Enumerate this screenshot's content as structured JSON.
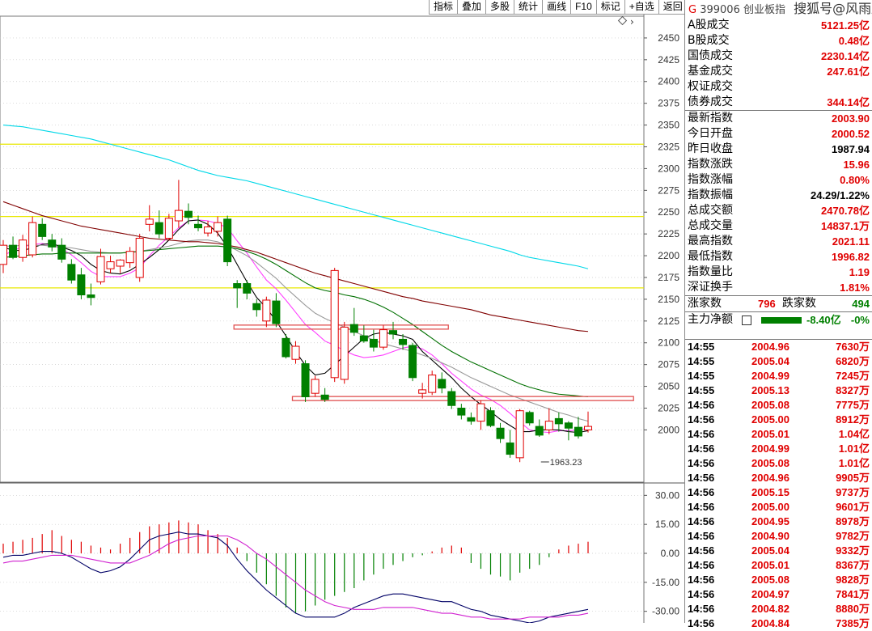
{
  "toolbar": [
    "指标",
    "叠加",
    "多股",
    "统计",
    "画线",
    "F10",
    "标记",
    "+自选",
    "返回"
  ],
  "header": {
    "marker": "G",
    "code": "399006",
    "name": "创业板指",
    "watermark": "搜狐号@风雨顺德人"
  },
  "market": [
    {
      "label": "A股成交",
      "value": "5121.25亿",
      "color": "red"
    },
    {
      "label": "B股成交",
      "value": "0.48亿",
      "color": "red"
    },
    {
      "label": "国债成交",
      "value": "2230.14亿",
      "color": "red"
    },
    {
      "label": "基金成交",
      "value": "247.61亿",
      "color": "red"
    },
    {
      "label": "权证成交",
      "value": "",
      "color": "red"
    },
    {
      "label": "债券成交",
      "value": "344.14亿",
      "color": "red"
    }
  ],
  "quote": [
    {
      "label": "最新指数",
      "value": "2003.90",
      "color": "red"
    },
    {
      "label": "今日开盘",
      "value": "2000.52",
      "color": "red"
    },
    {
      "label": "昨日收盘",
      "value": "1987.94",
      "color": "blk"
    },
    {
      "label": "指数涨跌",
      "value": "15.96",
      "color": "red"
    },
    {
      "label": "指数涨幅",
      "value": "0.80%",
      "color": "red"
    },
    {
      "label": "指数振幅",
      "value": "24.29/1.22%",
      "color": "blk"
    },
    {
      "label": "总成交额",
      "value": "2470.78亿",
      "color": "red"
    },
    {
      "label": "总成交量",
      "value": "14837.1万",
      "color": "red"
    },
    {
      "label": "最高指数",
      "value": "2021.11",
      "color": "red"
    },
    {
      "label": "最低指数",
      "value": "1996.82",
      "color": "red"
    },
    {
      "label": "指数量比",
      "value": "1.19",
      "color": "red"
    },
    {
      "label": "深证换手",
      "value": "1.81%",
      "color": "red"
    }
  ],
  "breadth": {
    "up_label": "涨家数",
    "up": "796",
    "down_label": "跌家数",
    "down": "494"
  },
  "mainflow": {
    "label": "主力净额",
    "value": "-8.40亿",
    "pct": "-0%"
  },
  "ticks": [
    {
      "t": "14:55",
      "p": "2004.96",
      "v": "7630万"
    },
    {
      "t": "14:55",
      "p": "2005.04",
      "v": "6820万"
    },
    {
      "t": "14:55",
      "p": "2004.99",
      "v": "7245万"
    },
    {
      "t": "14:55",
      "p": "2005.13",
      "v": "8327万"
    },
    {
      "t": "14:56",
      "p": "2005.08",
      "v": "7775万"
    },
    {
      "t": "14:56",
      "p": "2005.00",
      "v": "8912万"
    },
    {
      "t": "14:56",
      "p": "2005.01",
      "v": "1.04亿"
    },
    {
      "t": "14:56",
      "p": "2004.99",
      "v": "1.01亿"
    },
    {
      "t": "14:56",
      "p": "2005.08",
      "v": "1.01亿"
    },
    {
      "t": "14:56",
      "p": "2004.96",
      "v": "9905万"
    },
    {
      "t": "14:56",
      "p": "2005.15",
      "v": "9737万"
    },
    {
      "t": "14:56",
      "p": "2005.00",
      "v": "9601万"
    },
    {
      "t": "14:56",
      "p": "2004.95",
      "v": "8978万"
    },
    {
      "t": "14:56",
      "p": "2004.90",
      "v": "9782万"
    },
    {
      "t": "14:56",
      "p": "2005.04",
      "v": "9332万"
    },
    {
      "t": "14:56",
      "p": "2005.01",
      "v": "8367万"
    },
    {
      "t": "14:56",
      "p": "2005.08",
      "v": "9828万"
    },
    {
      "t": "14:56",
      "p": "2004.97",
      "v": "7841万"
    },
    {
      "t": "14:56",
      "p": "2004.82",
      "v": "8880万"
    },
    {
      "t": "14:56",
      "p": "2004.84",
      "v": "7385万"
    }
  ],
  "chart_data": {
    "type": "candlestick",
    "price_axis": {
      "ylim": [
        1940,
        2475
      ],
      "ticks": [
        2450,
        2425,
        2400,
        2375,
        2350,
        2325,
        2300,
        2275,
        2250,
        2225,
        2200,
        2175,
        2150,
        2125,
        2100,
        2075,
        2050,
        2025,
        2000
      ]
    },
    "macd_axis": {
      "ylim": [
        -36,
        36
      ],
      "ticks": [
        30.0,
        15.0,
        0.0,
        -15.0,
        -30.0
      ],
      "tick_labels": [
        "30.00",
        "15.00",
        "0.00",
        "-15.00",
        "-30.00"
      ]
    },
    "annotation": {
      "label": "1963.23",
      "value": 1963.23,
      "index": 55
    },
    "horizontal_lines": [
      {
        "value": 2328,
        "color": "#e8e800"
      },
      {
        "value": 2245,
        "color": "#e8e800"
      },
      {
        "value": 2163,
        "color": "#e8e800"
      }
    ],
    "zones": [
      {
        "from": 24,
        "to": 45,
        "value": 2118,
        "color": "#e05050"
      },
      {
        "from": 30,
        "to": 64,
        "value": 2036,
        "color": "#e05050"
      }
    ],
    "candles": [
      {
        "o": 2190,
        "h": 2218,
        "l": 2180,
        "c": 2212
      },
      {
        "o": 2212,
        "h": 2222,
        "l": 2196,
        "c": 2198
      },
      {
        "o": 2198,
        "h": 2224,
        "l": 2193,
        "c": 2218
      },
      {
        "o": 2201,
        "h": 2245,
        "l": 2198,
        "c": 2238
      },
      {
        "o": 2236,
        "h": 2243,
        "l": 2218,
        "c": 2222
      },
      {
        "o": 2218,
        "h": 2225,
        "l": 2205,
        "c": 2210
      },
      {
        "o": 2212,
        "h": 2220,
        "l": 2192,
        "c": 2196
      },
      {
        "o": 2190,
        "h": 2196,
        "l": 2168,
        "c": 2172
      },
      {
        "o": 2178,
        "h": 2186,
        "l": 2150,
        "c": 2155
      },
      {
        "o": 2155,
        "h": 2168,
        "l": 2143,
        "c": 2152
      },
      {
        "o": 2170,
        "h": 2208,
        "l": 2167,
        "c": 2199
      },
      {
        "o": 2185,
        "h": 2200,
        "l": 2180,
        "c": 2193
      },
      {
        "o": 2188,
        "h": 2196,
        "l": 2180,
        "c": 2195
      },
      {
        "o": 2192,
        "h": 2210,
        "l": 2186,
        "c": 2205
      },
      {
        "o": 2175,
        "h": 2225,
        "l": 2170,
        "c": 2220
      },
      {
        "o": 2236,
        "h": 2258,
        "l": 2228,
        "c": 2242
      },
      {
        "o": 2238,
        "h": 2252,
        "l": 2220,
        "c": 2225
      },
      {
        "o": 2220,
        "h": 2248,
        "l": 2218,
        "c": 2243
      },
      {
        "o": 2240,
        "h": 2287,
        "l": 2232,
        "c": 2252
      },
      {
        "o": 2251,
        "h": 2260,
        "l": 2236,
        "c": 2244
      },
      {
        "o": 2236,
        "h": 2246,
        "l": 2228,
        "c": 2232
      },
      {
        "o": 2226,
        "h": 2240,
        "l": 2222,
        "c": 2233
      },
      {
        "o": 2228,
        "h": 2245,
        "l": 2222,
        "c": 2238
      },
      {
        "o": 2242,
        "h": 2246,
        "l": 2188,
        "c": 2193
      },
      {
        "o": 2168,
        "h": 2172,
        "l": 2140,
        "c": 2163
      },
      {
        "o": 2168,
        "h": 2172,
        "l": 2150,
        "c": 2157
      },
      {
        "o": 2145,
        "h": 2150,
        "l": 2130,
        "c": 2138
      },
      {
        "o": 2125,
        "h": 2153,
        "l": 2118,
        "c": 2149
      },
      {
        "o": 2148,
        "h": 2157,
        "l": 2118,
        "c": 2122
      },
      {
        "o": 2105,
        "h": 2110,
        "l": 2082,
        "c": 2084
      },
      {
        "o": 2081,
        "h": 2102,
        "l": 2076,
        "c": 2096
      },
      {
        "o": 2076,
        "h": 2080,
        "l": 2032,
        "c": 2038
      },
      {
        "o": 2042,
        "h": 2062,
        "l": 2038,
        "c": 2058
      },
      {
        "o": 2040,
        "h": 2048,
        "l": 2032,
        "c": 2035
      },
      {
        "o": 2060,
        "h": 2186,
        "l": 2055,
        "c": 2183
      },
      {
        "o": 2058,
        "h": 2124,
        "l": 2053,
        "c": 2118
      },
      {
        "o": 2121,
        "h": 2140,
        "l": 2108,
        "c": 2112
      },
      {
        "o": 2108,
        "h": 2120,
        "l": 2100,
        "c": 2102
      },
      {
        "o": 2104,
        "h": 2115,
        "l": 2090,
        "c": 2095
      },
      {
        "o": 2095,
        "h": 2120,
        "l": 2092,
        "c": 2115
      },
      {
        "o": 2114,
        "h": 2124,
        "l": 2104,
        "c": 2110
      },
      {
        "o": 2104,
        "h": 2110,
        "l": 2092,
        "c": 2098
      },
      {
        "o": 2097,
        "h": 2100,
        "l": 2056,
        "c": 2060
      },
      {
        "o": 2042,
        "h": 2054,
        "l": 2036,
        "c": 2046
      },
      {
        "o": 2043,
        "h": 2068,
        "l": 2040,
        "c": 2063
      },
      {
        "o": 2058,
        "h": 2066,
        "l": 2042,
        "c": 2048
      },
      {
        "o": 2044,
        "h": 2048,
        "l": 2024,
        "c": 2028
      },
      {
        "o": 2025,
        "h": 2030,
        "l": 2012,
        "c": 2017
      },
      {
        "o": 2014,
        "h": 2020,
        "l": 2006,
        "c": 2010
      },
      {
        "o": 2010,
        "h": 2034,
        "l": 2000,
        "c": 2030
      },
      {
        "o": 2022,
        "h": 2026,
        "l": 2003,
        "c": 2005
      },
      {
        "o": 2002,
        "h": 2008,
        "l": 1985,
        "c": 1990
      },
      {
        "o": 1985,
        "h": 2000,
        "l": 1968,
        "c": 1972
      },
      {
        "o": 1968,
        "h": 2024,
        "l": 1963,
        "c": 2022
      },
      {
        "o": 2020,
        "h": 2022,
        "l": 2005,
        "c": 2008
      },
      {
        "o": 2004,
        "h": 2012,
        "l": 1992,
        "c": 1994
      },
      {
        "o": 2000,
        "h": 2025,
        "l": 1995,
        "c": 2010
      },
      {
        "o": 2013,
        "h": 2020,
        "l": 1998,
        "c": 2007
      },
      {
        "o": 2008,
        "h": 2010,
        "l": 1988,
        "c": 2002
      },
      {
        "o": 2003,
        "h": 2015,
        "l": 1990,
        "c": 1993
      },
      {
        "o": 2000,
        "h": 2021,
        "l": 1997,
        "c": 2004
      }
    ],
    "ma": [
      {
        "color": "#ff40ff",
        "values": [
          2200,
          2206,
          2210,
          2213,
          2214,
          2212,
          2208,
          2201,
          2192,
          2182,
          2176,
          2176,
          2176,
          2180,
          2186,
          2200,
          2212,
          2222,
          2232,
          2240,
          2241,
          2240,
          2237,
          2232,
          2217,
          2203,
          2187,
          2172,
          2162,
          2149,
          2135,
          2121,
          2112,
          2102,
          2097,
          2091,
          2086,
          2083,
          2084,
          2086,
          2090,
          2094,
          2096,
          2093,
          2086,
          2076,
          2065,
          2056,
          2047,
          2040,
          2035,
          2028,
          2019,
          2009,
          2000,
          1998,
          1997,
          1999,
          1999,
          2000,
          2002
        ]
      },
      {
        "color": "#000000",
        "values": [
          2210,
          2206,
          2206,
          2209,
          2213,
          2214,
          2210,
          2206,
          2200,
          2190,
          2183,
          2180,
          2179,
          2183,
          2190,
          2198,
          2207,
          2218,
          2230,
          2240,
          2241,
          2236,
          2226,
          2210,
          2190,
          2170,
          2152,
          2140,
          2125,
          2108,
          2090,
          2074,
          2063,
          2065,
          2075,
          2085,
          2095,
          2105,
          2110,
          2112,
          2110,
          2108,
          2104,
          2090,
          2080,
          2070,
          2060,
          2048,
          2038,
          2029,
          2021,
          2012,
          2005,
          1998,
          1998,
          2000,
          2000,
          2000,
          1998,
          1997,
          1999
        ]
      },
      {
        "color": "#9a9a9a",
        "values": [
          2211,
          2211,
          2212,
          2212,
          2212,
          2211,
          2210,
          2209,
          2207,
          2205,
          2204,
          2203,
          2203,
          2204,
          2205,
          2207,
          2209,
          2211,
          2214,
          2217,
          2218,
          2218,
          2216,
          2212,
          2206,
          2200,
          2192,
          2183,
          2174,
          2163,
          2153,
          2143,
          2134,
          2128,
          2123,
          2118,
          2113,
          2108,
          2103,
          2099,
          2096,
          2093,
          2090,
          2086,
          2082,
          2077,
          2072,
          2066,
          2060,
          2055,
          2050,
          2045,
          2040,
          2036,
          2032,
          2028,
          2024,
          2020,
          2017,
          2013,
          2010
        ]
      },
      {
        "color": "#007000",
        "values": [
          2198,
          2199,
          2200,
          2201,
          2202,
          2202,
          2203,
          2203,
          2203,
          2203,
          2203,
          2203,
          2203,
          2204,
          2205,
          2206,
          2207,
          2208,
          2209,
          2210,
          2211,
          2211,
          2211,
          2210,
          2208,
          2205,
          2201,
          2196,
          2190,
          2183,
          2176,
          2169,
          2163,
          2160,
          2158,
          2155,
          2153,
          2150,
          2146,
          2141,
          2135,
          2128,
          2121,
          2113,
          2105,
          2097,
          2090,
          2084,
          2078,
          2073,
          2068,
          2063,
          2058,
          2053,
          2049,
          2046,
          2043,
          2041,
          2040,
          2039,
          2038
        ]
      },
      {
        "color": "#800000",
        "values": [
          2262,
          2258,
          2254,
          2250,
          2246,
          2243,
          2240,
          2237,
          2234,
          2232,
          2230,
          2228,
          2226,
          2224,
          2222,
          2220,
          2219,
          2218,
          2217,
          2216,
          2216,
          2215,
          2214,
          2212,
          2210,
          2207,
          2204,
          2200,
          2196,
          2192,
          2188,
          2184,
          2180,
          2177,
          2174,
          2171,
          2168,
          2165,
          2162,
          2159,
          2156,
          2153,
          2151,
          2148,
          2146,
          2144,
          2142,
          2140,
          2138,
          2135,
          2132,
          2130,
          2128,
          2126,
          2124,
          2122,
          2120,
          2118,
          2116,
          2114,
          2113
        ]
      },
      {
        "color": "#00d8e8",
        "values": [
          2350,
          2349,
          2348,
          2346,
          2344,
          2342,
          2340,
          2338,
          2336,
          2334,
          2331,
          2328,
          2325,
          2322,
          2319,
          2316,
          2313,
          2310,
          2306,
          2302,
          2298,
          2295,
          2292,
          2290,
          2288,
          2286,
          2283,
          2280,
          2277,
          2274,
          2271,
          2268,
          2265,
          2262,
          2259,
          2256,
          2253,
          2250,
          2247,
          2244,
          2241,
          2238,
          2235,
          2232,
          2229,
          2226,
          2223,
          2220,
          2217,
          2214,
          2211,
          2208,
          2205,
          2201,
          2198,
          2196,
          2194,
          2192,
          2190,
          2188,
          2185
        ]
      }
    ],
    "macd": {
      "hist": [
        5,
        6,
        7,
        8,
        10,
        12,
        9,
        7,
        6,
        4,
        3,
        2,
        5,
        8,
        11,
        14,
        15,
        16,
        17,
        16,
        15,
        12,
        10,
        8,
        3,
        -4,
        -10,
        -16,
        -22,
        -28,
        -31,
        -30,
        -27,
        -24,
        -22,
        -20,
        -18,
        -14,
        -11,
        -8,
        -6,
        -4,
        -2,
        -1,
        1,
        3,
        4,
        3,
        -5,
        -8,
        -11,
        -12,
        -14,
        -10,
        -8,
        -6,
        -2,
        2,
        4,
        5,
        6
      ],
      "dif": [
        -2,
        -1,
        -1,
        0,
        1,
        1,
        0,
        -2,
        -5,
        -8,
        -10,
        -9,
        -7,
        -3,
        2,
        7,
        9,
        10,
        11,
        10,
        10,
        9,
        8,
        4,
        -3,
        -9,
        -14,
        -19,
        -23,
        -27,
        -31,
        -33,
        -33,
        -33,
        -33,
        -31,
        -28,
        -26,
        -24,
        -22,
        -21,
        -21,
        -22,
        -23,
        -24,
        -25,
        -25,
        -27,
        -29,
        -30,
        -32,
        -33,
        -34,
        -35,
        -36,
        -35,
        -33,
        -32,
        -31,
        -30,
        -29
      ],
      "dea": [
        -5,
        -4,
        -4,
        -3,
        -2,
        -1,
        -1,
        -1,
        -2,
        -3,
        -4,
        -5,
        -5,
        -5,
        -3,
        -1,
        2,
        5,
        7,
        8,
        9,
        9,
        9,
        9,
        7,
        4,
        0,
        -3,
        -7,
        -11,
        -15,
        -19,
        -22,
        -25,
        -27,
        -28,
        -29,
        -29,
        -29,
        -28,
        -28,
        -28,
        -28,
        -29,
        -30,
        -31,
        -31,
        -32,
        -33,
        -33,
        -34,
        -34,
        -34,
        -34,
        -33,
        -33,
        -33,
        -33,
        -32,
        -32,
        -31
      ]
    }
  }
}
